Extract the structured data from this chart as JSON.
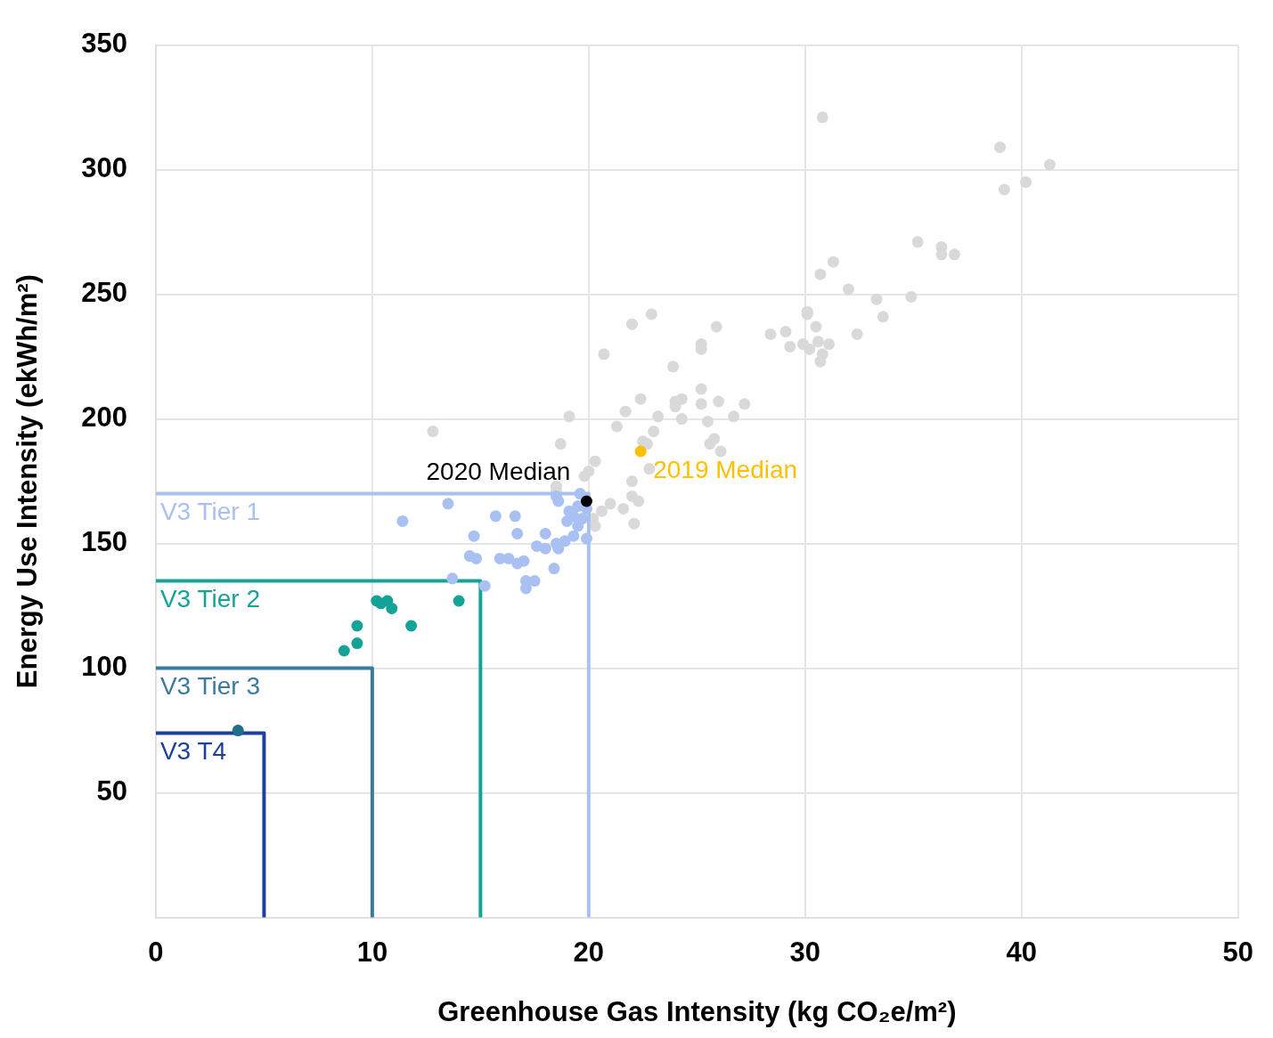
{
  "chart_data": {
    "type": "scatter",
    "xlabel": "Greenhouse Gas Intensity (kg CO₂e/m²)",
    "ylabel": "Energy Use Intensity (ekWh/m²)",
    "xlim": [
      0,
      50
    ],
    "xticks": [
      0,
      10,
      20,
      30,
      40,
      50
    ],
    "ylim": [
      0,
      350
    ],
    "yticks": [
      50,
      100,
      150,
      200,
      250,
      300,
      350
    ],
    "grid": true,
    "legend": false,
    "marker": "circle",
    "series": [
      {
        "color": "#d9d9d9",
        "x": [
          30.8,
          39.0,
          41.3,
          39.2,
          40.2,
          35.2,
          36.3,
          36.3,
          36.9,
          31.3,
          30.7,
          32.0,
          33.3,
          34.9,
          33.6,
          30.1,
          30.1,
          30.5,
          28.4,
          29.1,
          29.3,
          29.9,
          30.2,
          30.6,
          31.1,
          30.8,
          30.7,
          32.4,
          22.9,
          22.0,
          25.9,
          25.2,
          25.2,
          20.7,
          23.9,
          25.2,
          26.0,
          27.2,
          25.2,
          24.3,
          24.0,
          24.0,
          22.4,
          21.7,
          23.2,
          24.3,
          25.5,
          26.7,
          19.1,
          21.3,
          23.0,
          25.8,
          25.6,
          26.1,
          22.5,
          22.7,
          18.7,
          12.8,
          20.3,
          20.0,
          19.8,
          22.8,
          22.0,
          22.0,
          22.3,
          21.0,
          20.6,
          21.6,
          22.1,
          20.2,
          20.3,
          18.5,
          18.5
        ],
        "values": [
          321,
          309,
          302,
          292,
          295,
          271,
          269,
          266,
          266,
          263,
          258,
          252,
          248,
          249,
          241,
          243,
          242,
          237,
          234,
          235,
          229,
          230,
          228,
          231,
          230,
          226,
          223,
          234,
          242,
          238,
          237,
          230,
          228,
          226,
          221,
          212,
          207,
          206,
          206,
          208,
          207,
          205,
          208,
          203,
          201,
          200,
          199,
          201,
          201,
          197,
          195,
          192,
          190,
          187,
          191,
          190,
          190,
          195,
          183,
          179,
          177,
          180,
          175,
          169,
          167,
          166,
          163,
          164,
          158,
          160,
          157,
          173,
          171
        ]
      },
      {
        "type": "line",
        "marker": "none",
        "name": "V3 Tier 1",
        "color": "#a9c1f2",
        "x": [
          0,
          20,
          20
        ],
        "values": [
          170,
          170,
          0
        ]
      },
      {
        "type": "line",
        "marker": "none",
        "name": "V3 Tier 2",
        "color": "#14a396",
        "x": [
          0,
          15,
          15
        ],
        "values": [
          135,
          135,
          0
        ]
      },
      {
        "type": "line",
        "marker": "none",
        "name": "V3 Tier 3",
        "color": "#3b7b9c",
        "x": [
          0,
          10,
          10
        ],
        "values": [
          100,
          100,
          0
        ]
      },
      {
        "type": "line",
        "marker": "none",
        "name": "V3 T4",
        "color": "#1f3f9e",
        "x": [
          0,
          5,
          5
        ],
        "values": [
          74,
          74,
          0
        ]
      },
      {
        "color": "#a9c1f2",
        "x": [
          13.5,
          11.4,
          15.7,
          16.6,
          16.7,
          14.7,
          14.5,
          14.8,
          15.9,
          16.3,
          16.7,
          17.0,
          13.7,
          15.2,
          17.1,
          17.5,
          17.1,
          18.4,
          17.6,
          18.0,
          18.0,
          18.5,
          18.6,
          18.9,
          19.0,
          18.5,
          18.6,
          19.1,
          19.6,
          19.5,
          19.3,
          19.5,
          19.9,
          19.3,
          19.7,
          19.9
        ],
        "values": [
          166,
          159,
          161,
          161,
          154,
          153,
          145,
          144,
          144,
          144,
          142,
          143,
          136,
          133,
          135,
          135,
          132,
          140,
          149,
          148,
          154,
          150,
          148,
          151,
          159,
          169,
          167,
          163,
          170,
          165,
          161,
          157,
          152,
          153,
          160,
          164
        ]
      },
      {
        "color": "#14a396",
        "x": [
          9.3,
          9.3,
          8.7,
          10.2,
          10.4,
          10.7,
          10.9,
          11.8,
          14.0
        ],
        "values": [
          117,
          110,
          107,
          127,
          126,
          127,
          124,
          117,
          127
        ]
      },
      {
        "color": "#1d6f8c",
        "x": [
          3.8
        ],
        "values": [
          75
        ]
      },
      {
        "name": "2020 Median",
        "color": "#000000",
        "x": [
          19.9
        ],
        "values": [
          167
        ]
      },
      {
        "name": "2019 Median",
        "color": "#ffc000",
        "x": [
          22.4
        ],
        "values": [
          187
        ]
      }
    ]
  }
}
